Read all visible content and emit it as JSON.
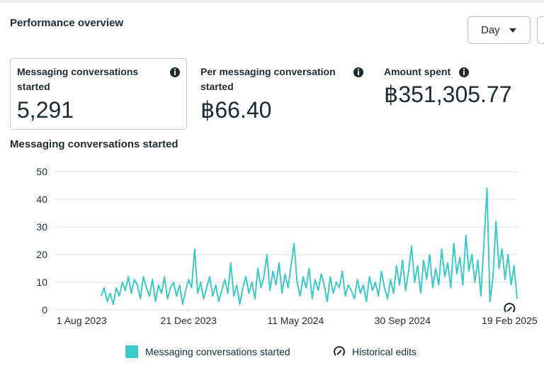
{
  "header": {
    "title": "Performance overview",
    "period_button": "Day"
  },
  "metrics": [
    {
      "label": "Messaging conversations started",
      "value": "5,291"
    },
    {
      "label": "Per messaging conversation started",
      "value": "฿66.40"
    },
    {
      "label": "Amount spent",
      "value": "฿351,305.77"
    }
  ],
  "chart_data": {
    "type": "line",
    "title": "Messaging conversations started",
    "x": [
      "2023-08-27",
      "2023-08-31",
      "2023-09-04",
      "2023-09-08",
      "2023-09-12",
      "2023-09-16",
      "2023-09-20",
      "2023-09-24",
      "2023-09-28",
      "2023-10-02",
      "2023-10-06",
      "2023-10-10",
      "2023-10-14",
      "2023-10-18",
      "2023-10-22",
      "2023-10-26",
      "2023-10-30",
      "2023-11-03",
      "2023-11-07",
      "2023-11-11",
      "2023-11-15",
      "2023-11-19",
      "2023-11-23",
      "2023-11-27",
      "2023-12-01",
      "2023-12-05",
      "2023-12-09",
      "2023-12-13",
      "2023-12-17",
      "2023-12-21",
      "2023-12-25",
      "2023-12-29",
      "2024-01-02",
      "2024-01-06",
      "2024-01-10",
      "2024-01-14",
      "2024-01-18",
      "2024-01-22",
      "2024-01-26",
      "2024-01-30",
      "2024-02-03",
      "2024-02-07",
      "2024-02-11",
      "2024-02-15",
      "2024-02-19",
      "2024-02-23",
      "2024-02-27",
      "2024-03-02",
      "2024-03-06",
      "2024-03-10",
      "2024-03-14",
      "2024-03-18",
      "2024-03-22",
      "2024-03-26",
      "2024-03-30",
      "2024-04-03",
      "2024-04-07",
      "2024-04-11",
      "2024-04-15",
      "2024-04-19",
      "2024-04-23",
      "2024-04-27",
      "2024-05-01",
      "2024-05-05",
      "2024-05-09",
      "2024-05-13",
      "2024-05-17",
      "2024-05-21",
      "2024-05-25",
      "2024-05-29",
      "2024-06-02",
      "2024-06-06",
      "2024-06-10",
      "2024-06-14",
      "2024-06-18",
      "2024-06-22",
      "2024-06-26",
      "2024-06-30",
      "2024-07-04",
      "2024-07-08",
      "2024-07-12",
      "2024-07-16",
      "2024-07-20",
      "2024-07-24",
      "2024-07-28",
      "2024-08-01",
      "2024-08-05",
      "2024-08-09",
      "2024-08-13",
      "2024-08-17",
      "2024-08-21",
      "2024-08-25",
      "2024-08-29",
      "2024-09-02",
      "2024-09-06",
      "2024-09-10",
      "2024-09-14",
      "2024-09-18",
      "2024-09-22",
      "2024-09-26",
      "2024-09-30",
      "2024-10-04",
      "2024-10-08",
      "2024-10-12",
      "2024-10-16",
      "2024-10-20",
      "2024-10-24",
      "2024-10-28",
      "2024-11-01",
      "2024-11-05",
      "2024-11-09",
      "2024-11-13",
      "2024-11-17",
      "2024-11-21",
      "2024-11-25",
      "2024-11-29",
      "2024-12-03",
      "2024-12-07",
      "2024-12-11",
      "2024-12-15",
      "2024-12-19",
      "2024-12-23",
      "2024-12-27",
      "2024-12-31",
      "2025-01-04",
      "2025-01-08",
      "2025-01-12",
      "2025-01-16",
      "2025-01-20",
      "2025-01-24",
      "2025-01-28",
      "2025-02-01",
      "2025-02-05",
      "2025-02-09",
      "2025-02-13",
      "2025-02-17",
      "2025-02-21",
      "2025-02-25",
      "2025-03-01"
    ],
    "series": [
      {
        "name": "Messaging conversations started",
        "color": "#3cc9c9",
        "values": [
          5,
          8,
          3,
          6,
          2,
          8,
          5,
          10,
          7,
          12,
          6,
          11,
          9,
          4,
          12,
          8,
          5,
          11,
          3,
          9,
          6,
          12,
          4,
          8,
          10,
          5,
          9,
          2,
          7,
          11,
          8,
          22,
          6,
          10,
          4,
          8,
          12,
          5,
          9,
          3,
          7,
          11,
          6,
          17,
          5,
          9,
          2,
          8,
          12,
          6,
          10,
          4,
          15,
          8,
          12,
          20,
          7,
          14,
          9,
          17,
          6,
          13,
          8,
          16,
          24,
          10,
          5,
          12,
          8,
          15,
          4,
          11,
          7,
          13,
          9,
          3,
          12,
          6,
          10,
          8,
          14,
          5,
          9,
          7,
          4,
          11,
          6,
          9,
          3,
          12,
          7,
          10,
          5,
          14,
          8,
          4,
          11,
          6,
          16,
          9,
          18,
          7,
          14,
          23,
          10,
          16,
          6,
          18,
          11,
          20,
          8,
          15,
          9,
          22,
          12,
          17,
          8,
          24,
          13,
          19,
          9,
          27,
          14,
          20,
          10,
          18,
          5,
          24,
          44,
          3,
          12,
          32,
          15,
          22,
          11,
          20,
          9,
          16,
          4
        ]
      }
    ],
    "xlim": [
      "2023-06-27",
      "2025-03-01"
    ],
    "xticks": [
      {
        "value": "2023-08-01",
        "label": "1 Aug 2023"
      },
      {
        "value": "2023-12-21",
        "label": "21 Dec 2023"
      },
      {
        "value": "2024-05-11",
        "label": "11 May 2024"
      },
      {
        "value": "2024-09-30",
        "label": "30 Sep 2024"
      },
      {
        "value": "2025-02-19",
        "label": "19 Feb 2025"
      }
    ],
    "ylim": [
      0,
      50
    ],
    "yticks": [
      0,
      10,
      20,
      30,
      40,
      50
    ],
    "grid": true,
    "historical_edits": {
      "label": "Historical edits",
      "x": "2025-02-19"
    }
  }
}
